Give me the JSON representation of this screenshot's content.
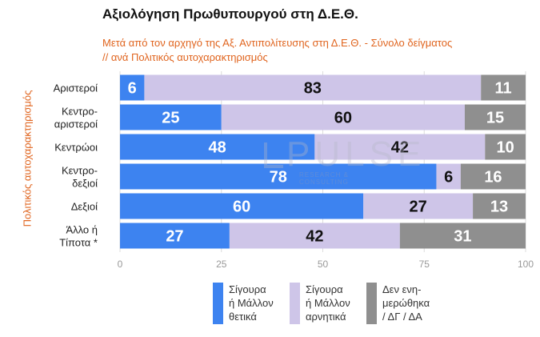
{
  "chart_data": {
    "type": "bar",
    "orientation": "horizontal",
    "stacked": true,
    "title": "Αξιολόγηση Πρωθυπουργού στη Δ.Ε.Θ.",
    "subtitle_line1": "Μετά από τον αρχηγό της Αξ. Αντιπολίτευσης στη Δ.Ε.Θ.  -  Σύνολο δείγματος",
    "subtitle_line2": " // ανά Πολιτικός αυτοχαρακτηρισμός",
    "ylabel": "Πολιτικός αυτοχαρακτηρισμός",
    "categories": [
      "Αριστεροί",
      "Κεντρο-\nαριστεροί",
      "Κεντρώοι",
      "Κεντρο-\nδεξιοί",
      "Δεξιοί",
      "Άλλο ή\nΤίποτα *"
    ],
    "series": [
      {
        "name": "Σίγουρα\nή Μάλλον\nθετικά",
        "color": "#3d83f0",
        "label_color": "#ffffff",
        "values": [
          6,
          25,
          48,
          78,
          60,
          27
        ]
      },
      {
        "name": "Σίγουρα\nή Μάλλον\nαρνητικά",
        "color": "#cec5e8",
        "label_color": "#111111",
        "values": [
          83,
          60,
          42,
          6,
          27,
          42
        ]
      },
      {
        "name": "Δεν ενη-\nμερώθηκα\n/ ΔΓ / ΔΑ",
        "color": "#8f8f8f",
        "label_color": "#ffffff",
        "values": [
          11,
          15,
          10,
          16,
          13,
          31
        ]
      }
    ],
    "xlim": [
      0,
      100
    ],
    "xticks": [
      "0",
      "25",
      "50",
      "75",
      "100"
    ],
    "grid": true,
    "legend_position": "bottom"
  },
  "watermark": {
    "text": "PULSE",
    "subtext": "RESEARCH & CONSULTING"
  }
}
